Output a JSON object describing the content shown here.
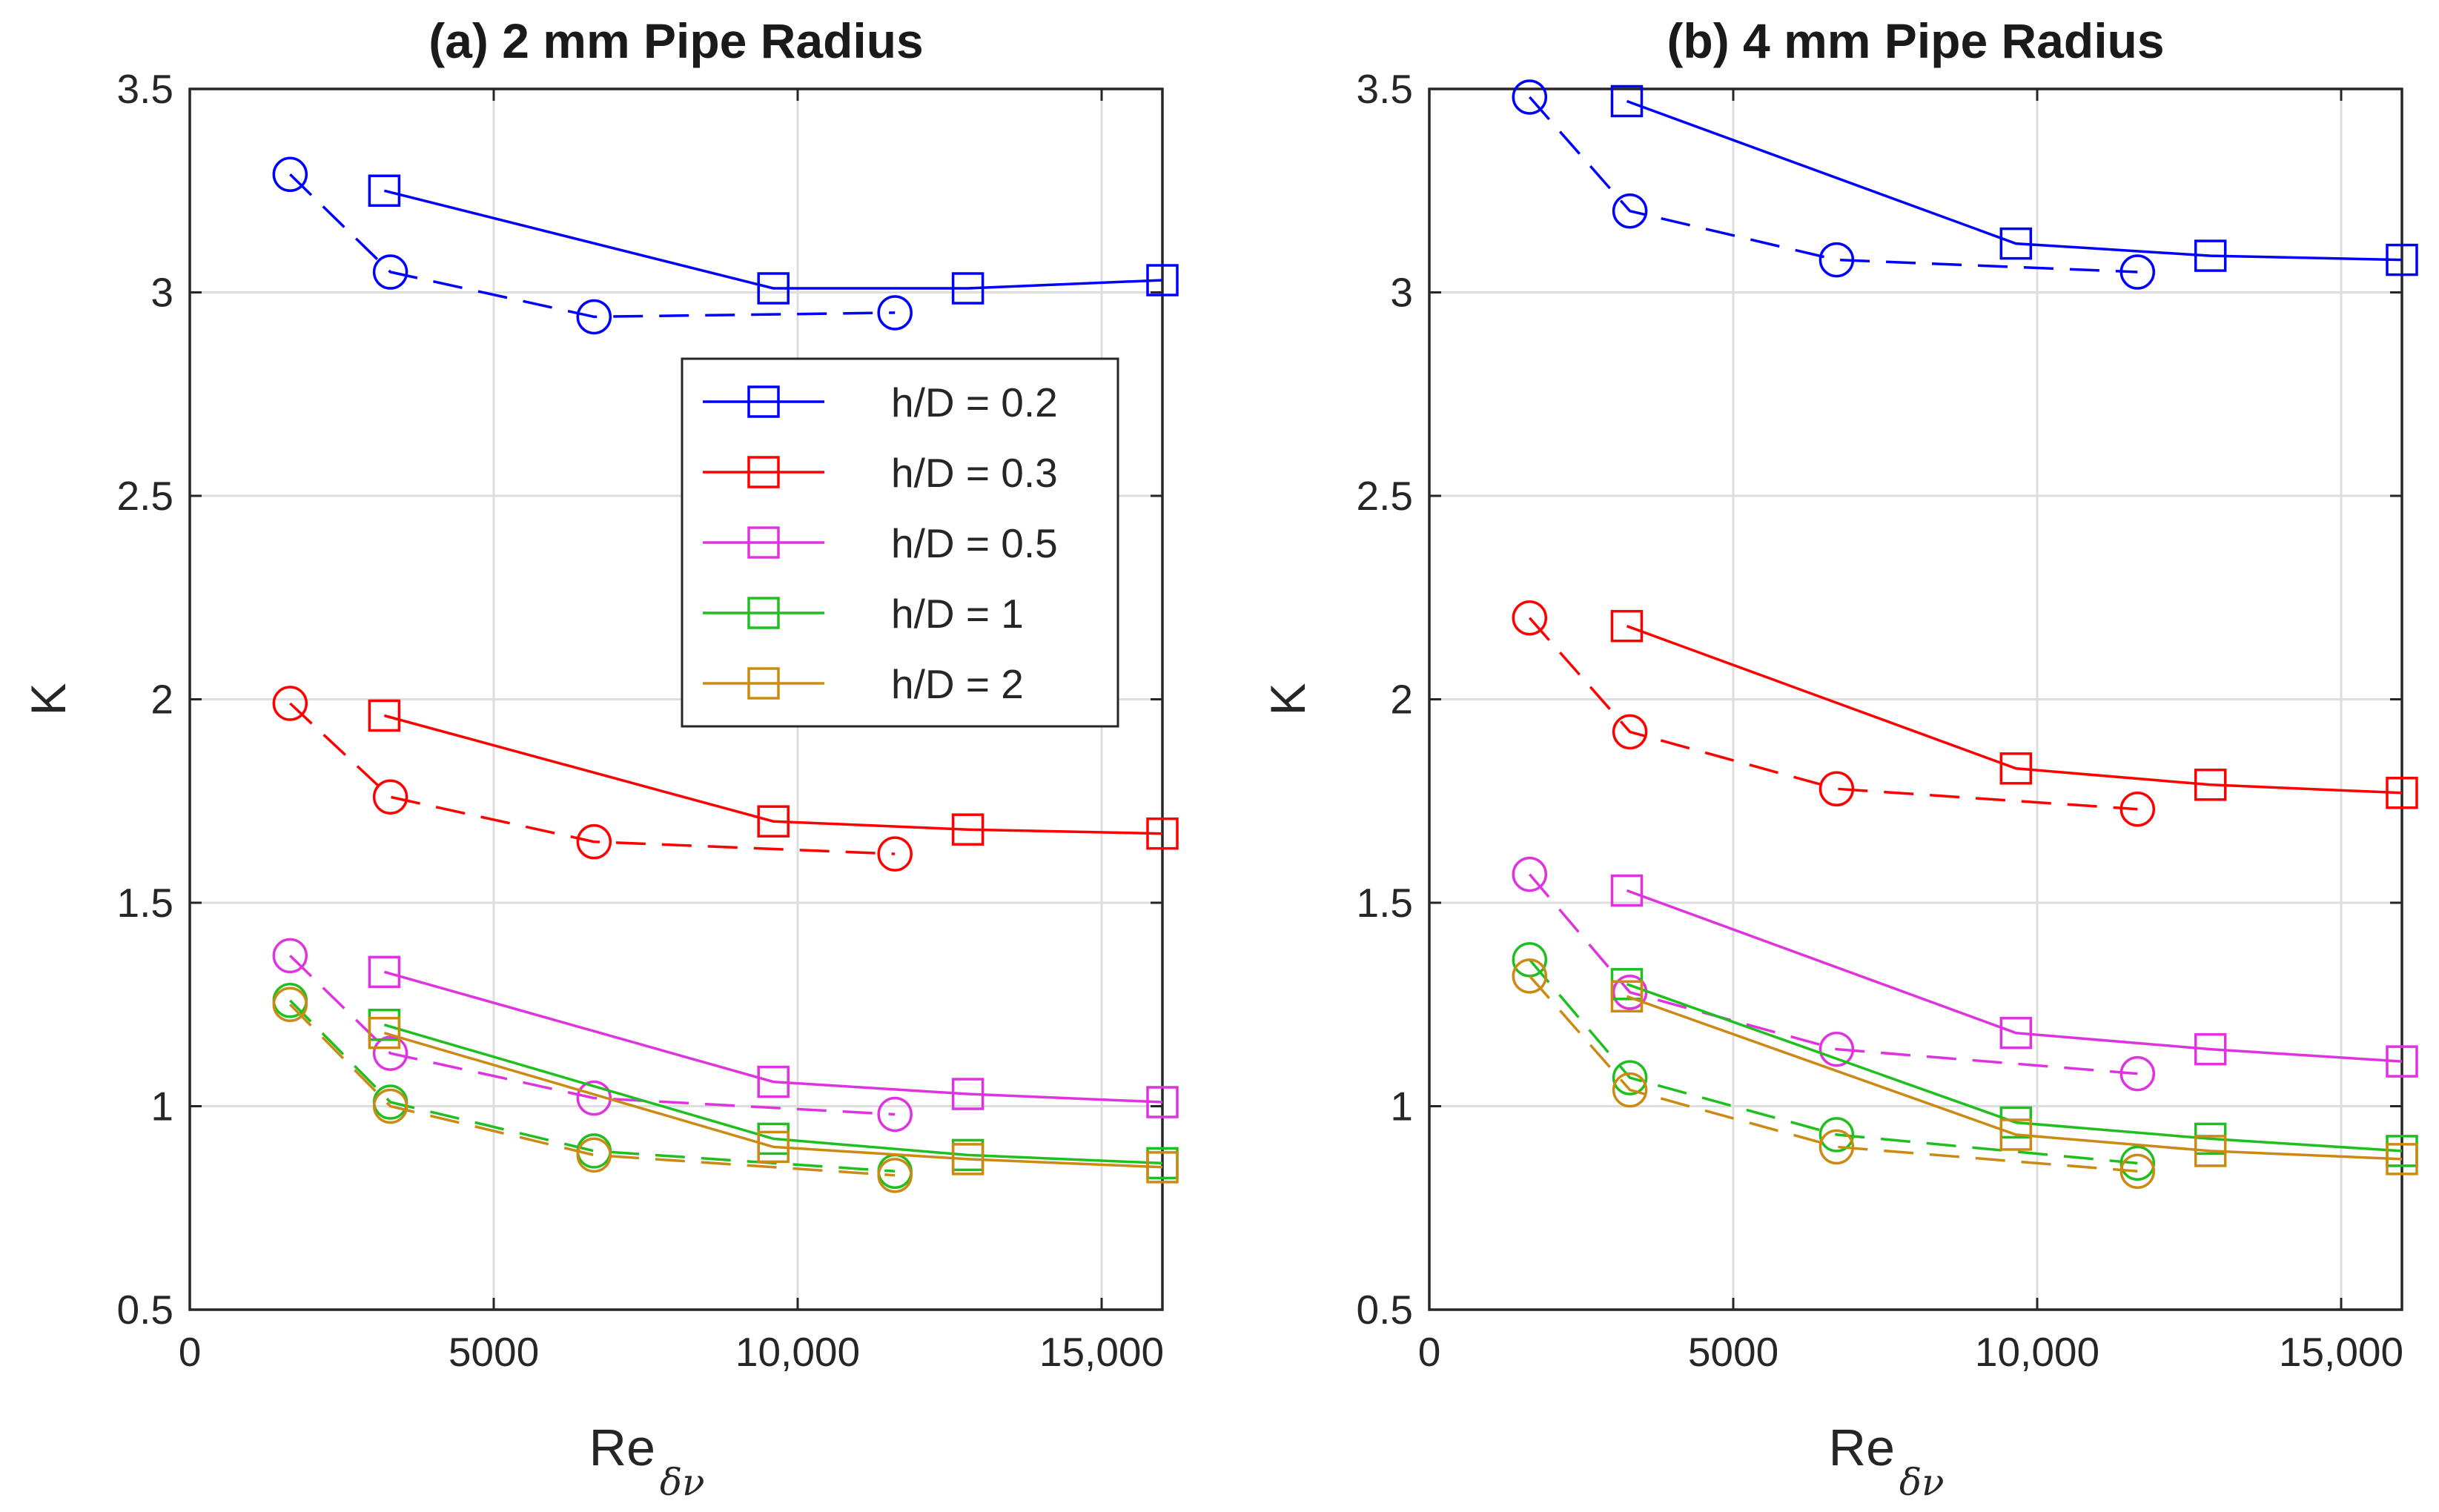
{
  "chart_data": [
    {
      "type": "line",
      "title": "(a) 2 mm Pipe Radius",
      "xlabel": "Re",
      "xlabel_subscript": "δν",
      "ylabel": "K",
      "xlim": [
        0,
        16000
      ],
      "ylim": [
        0.5,
        3.5
      ],
      "xticks": [
        0,
        5000,
        10000,
        15000
      ],
      "xtick_labels": [
        "0",
        "5000",
        "10,000",
        "15,000"
      ],
      "yticks": [
        0.5,
        1,
        1.5,
        2,
        2.5,
        3,
        3.5
      ],
      "ytick_labels": [
        "0.5",
        "1",
        "1.5",
        "2",
        "2.5",
        "3",
        "3.5"
      ],
      "grid": true,
      "legend": {
        "placement": "upper-right",
        "entries": [
          "h/D = 0.2",
          "h/D = 0.3",
          "h/D = 0.5",
          "h/D = 1",
          "h/D = 2"
        ]
      },
      "series": [
        {
          "name": "h/D = 0.2",
          "color": "#0000ff",
          "marker": "square",
          "dash": "solid",
          "x": [
            3200,
            9600,
            12800,
            16000
          ],
          "y": [
            3.25,
            3.01,
            3.01,
            3.03
          ]
        },
        {
          "name": "h/D = 0.2 (circles)",
          "color": "#0000ff",
          "marker": "circle",
          "dash": "dashed",
          "x": [
            1650,
            3300,
            6650,
            11600
          ],
          "y": [
            3.29,
            3.05,
            2.94,
            2.95
          ]
        },
        {
          "name": "h/D = 0.3",
          "color": "#ff0000",
          "marker": "square",
          "dash": "solid",
          "x": [
            3200,
            9600,
            12800,
            16000
          ],
          "y": [
            1.96,
            1.7,
            1.68,
            1.67
          ]
        },
        {
          "name": "h/D = 0.3 (circles)",
          "color": "#ff0000",
          "marker": "circle",
          "dash": "dashed",
          "x": [
            1650,
            3300,
            6650,
            11600
          ],
          "y": [
            1.99,
            1.76,
            1.65,
            1.62
          ]
        },
        {
          "name": "h/D = 0.5",
          "color": "#e033e0",
          "marker": "square",
          "dash": "solid",
          "x": [
            3200,
            9600,
            12800,
            16000
          ],
          "y": [
            1.33,
            1.06,
            1.03,
            1.01
          ]
        },
        {
          "name": "h/D = 0.5 (circles)",
          "color": "#e033e0",
          "marker": "circle",
          "dash": "dashed",
          "x": [
            1650,
            3300,
            6650,
            11600
          ],
          "y": [
            1.37,
            1.13,
            1.02,
            0.98
          ]
        },
        {
          "name": "h/D = 1",
          "color": "#1fbf1f",
          "marker": "square",
          "dash": "solid",
          "x": [
            3200,
            9600,
            12800,
            16000
          ],
          "y": [
            1.2,
            0.92,
            0.88,
            0.86
          ]
        },
        {
          "name": "h/D = 1 (circles)",
          "color": "#1fbf1f",
          "marker": "circle",
          "dash": "dashed",
          "x": [
            1650,
            3300,
            6650,
            11600
          ],
          "y": [
            1.26,
            1.01,
            0.89,
            0.84
          ]
        },
        {
          "name": "h/D = 2",
          "color": "#cc8a14",
          "marker": "square",
          "dash": "solid",
          "x": [
            3200,
            9600,
            12800,
            16000
          ],
          "y": [
            1.18,
            0.9,
            0.87,
            0.85
          ]
        },
        {
          "name": "h/D = 2 (circles)",
          "color": "#cc8a14",
          "marker": "circle",
          "dash": "dashed",
          "x": [
            1650,
            3300,
            6650,
            11600
          ],
          "y": [
            1.25,
            1.0,
            0.88,
            0.83
          ]
        }
      ]
    },
    {
      "type": "line",
      "title": "(b) 4 mm Pipe Radius",
      "xlabel": "Re",
      "xlabel_subscript": "δν",
      "ylabel": "K",
      "xlim": [
        0,
        16000
      ],
      "ylim": [
        0.5,
        3.5
      ],
      "xticks": [
        0,
        5000,
        10000,
        15000
      ],
      "xtick_labels": [
        "0",
        "5000",
        "10,000",
        "15,000"
      ],
      "yticks": [
        0.5,
        1,
        1.5,
        2,
        2.5,
        3,
        3.5
      ],
      "ytick_labels": [
        "0.5",
        "1",
        "1.5",
        "2",
        "2.5",
        "3",
        "3.5"
      ],
      "grid": true,
      "series": [
        {
          "name": "h/D = 0.2",
          "color": "#0000ff",
          "marker": "square",
          "dash": "solid",
          "x": [
            3250,
            9650,
            12850,
            16000
          ],
          "y": [
            3.47,
            3.12,
            3.09,
            3.08
          ]
        },
        {
          "name": "h/D = 0.2 (circles)",
          "color": "#0000ff",
          "marker": "circle",
          "dash": "dashed",
          "x": [
            1650,
            3300,
            6700,
            11650
          ],
          "y": [
            3.48,
            3.2,
            3.08,
            3.05
          ]
        },
        {
          "name": "h/D = 0.3",
          "color": "#ff0000",
          "marker": "square",
          "dash": "solid",
          "x": [
            3250,
            9650,
            12850,
            16000
          ],
          "y": [
            2.18,
            1.83,
            1.79,
            1.77
          ]
        },
        {
          "name": "h/D = 0.3 (circles)",
          "color": "#ff0000",
          "marker": "circle",
          "dash": "dashed",
          "x": [
            1650,
            3300,
            6700,
            11650
          ],
          "y": [
            2.2,
            1.92,
            1.78,
            1.73
          ]
        },
        {
          "name": "h/D = 0.5",
          "color": "#e033e0",
          "marker": "square",
          "dash": "solid",
          "x": [
            3250,
            9650,
            12850,
            16000
          ],
          "y": [
            1.53,
            1.18,
            1.14,
            1.11
          ]
        },
        {
          "name": "h/D = 0.5 (circles)",
          "color": "#e033e0",
          "marker": "circle",
          "dash": "dashed",
          "x": [
            1650,
            3300,
            6700,
            11650
          ],
          "y": [
            1.57,
            1.28,
            1.14,
            1.08
          ]
        },
        {
          "name": "h/D = 1",
          "color": "#1fbf1f",
          "marker": "square",
          "dash": "solid",
          "x": [
            3250,
            9650,
            12850,
            16000
          ],
          "y": [
            1.3,
            0.96,
            0.92,
            0.89
          ]
        },
        {
          "name": "h/D = 1 (circles)",
          "color": "#1fbf1f",
          "marker": "circle",
          "dash": "dashed",
          "x": [
            1650,
            3300,
            6700,
            11650
          ],
          "y": [
            1.36,
            1.07,
            0.93,
            0.86
          ]
        },
        {
          "name": "h/D = 2",
          "color": "#cc8a14",
          "marker": "square",
          "dash": "solid",
          "x": [
            3250,
            9650,
            12850,
            16000
          ],
          "y": [
            1.27,
            0.93,
            0.89,
            0.87
          ]
        },
        {
          "name": "h/D = 2 (circles)",
          "color": "#cc8a14",
          "marker": "circle",
          "dash": "dashed",
          "x": [
            1650,
            3300,
            6700,
            11650
          ],
          "y": [
            1.32,
            1.04,
            0.9,
            0.84
          ]
        }
      ]
    }
  ]
}
